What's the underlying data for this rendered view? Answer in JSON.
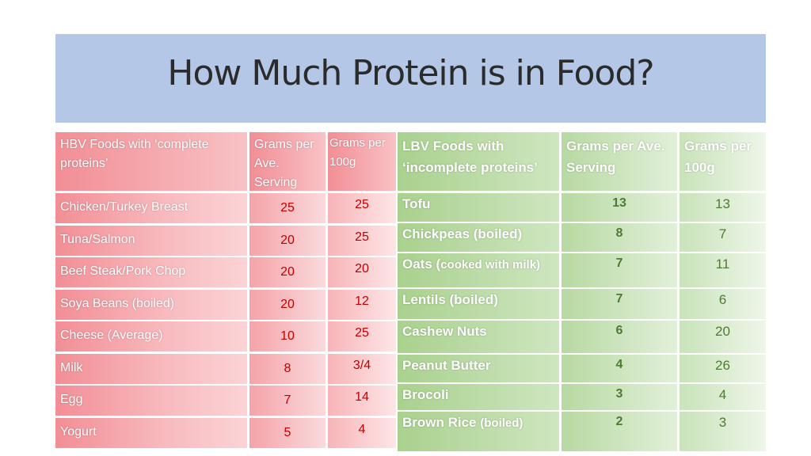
{
  "title": "How Much Protein is in Food?",
  "hbv": {
    "headers": [
      "HBV Foods with ‘complete proteins’",
      "Grams per Ave. Serving",
      "Grams per 100g"
    ],
    "rows": [
      {
        "food": "Chicken/Turkey Breast",
        "serving": "25",
        "per100": "25"
      },
      {
        "food": "Tuna/Salmon",
        "serving": "20",
        "per100": "25"
      },
      {
        "food": "Beef Steak/Pork Chop",
        "serving": "20",
        "per100": "20"
      },
      {
        "food": "Soya Beans (boiled)",
        "serving": "20",
        "per100": "12"
      },
      {
        "food": "Cheese (Average)",
        "serving": "10",
        "per100": "25"
      },
      {
        "food": "Milk",
        "serving": "8",
        "per100": "3/4"
      },
      {
        "food": "Egg",
        "serving": "7",
        "per100": "14"
      },
      {
        "food": "Yogurt",
        "serving": "5",
        "per100": "4"
      }
    ]
  },
  "lbv": {
    "headers": [
      "LBV Foods with ‘incomplete proteins’",
      "Grams per Ave. Serving",
      "Grams per 100g"
    ],
    "rows": [
      {
        "food": "Tofu",
        "food_note": "",
        "serving": "13",
        "per100": "13"
      },
      {
        "food": "Chickpeas (boiled)",
        "food_note": "",
        "serving": "8",
        "per100": "7"
      },
      {
        "food": "Oats (",
        "food_note": "cooked with milk)",
        "serving": "7",
        "per100": "11"
      },
      {
        "food": "Lentils (boiled)",
        "food_note": "",
        "serving": "7",
        "per100": "6"
      },
      {
        "food": "Cashew Nuts",
        "food_note": "",
        "serving": "6",
        "per100": "20"
      },
      {
        "food": "Peanut Butter",
        "food_note": "",
        "serving": "4",
        "per100": "26"
      },
      {
        "food": "Brocoli",
        "food_note": "",
        "serving": "3",
        "per100": "4"
      },
      {
        "food": "Brown Rice ",
        "food_note": "(boiled)",
        "serving": "2",
        "per100": "3"
      }
    ]
  }
}
